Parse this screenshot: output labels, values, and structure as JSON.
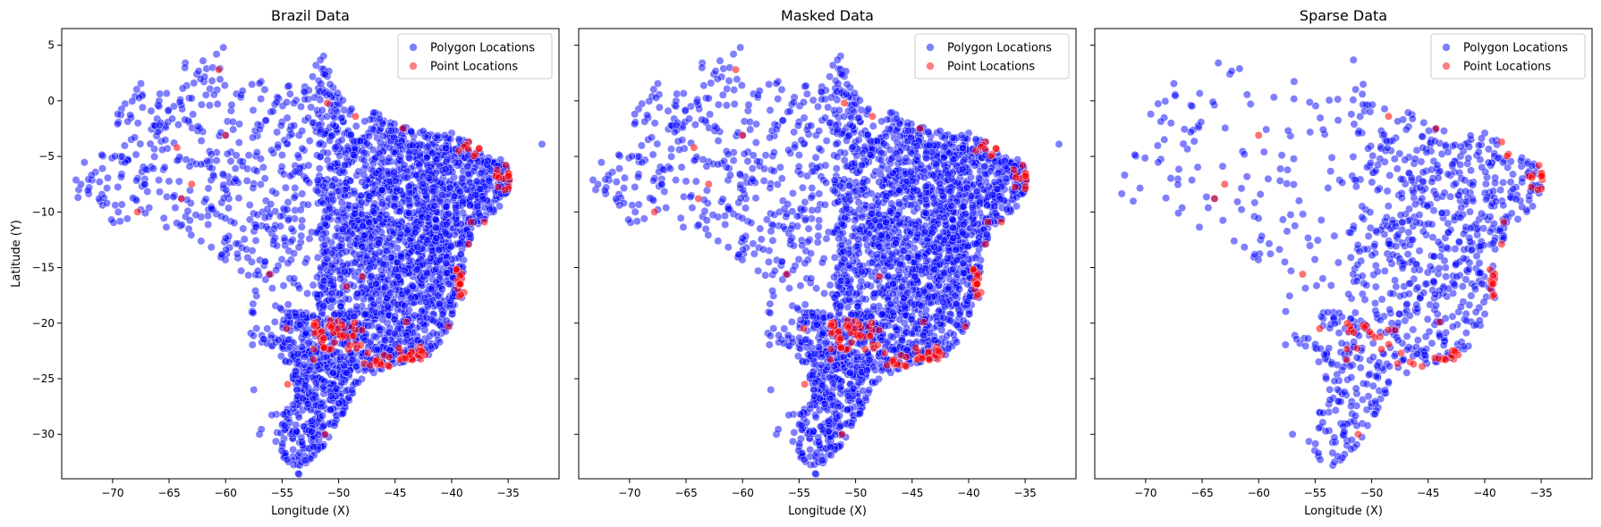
{
  "chart_data": [
    {
      "type": "scatter",
      "title": "Brazil Data",
      "xlabel": "Longitude (X)",
      "ylabel": "Latitude (Y)",
      "xlim": [
        -74.5,
        -30.5
      ],
      "ylim": [
        -34,
        6.5
      ],
      "xticks": [
        -70,
        -65,
        -60,
        -55,
        -50,
        -45,
        -40,
        -35
      ],
      "yticks": [
        5,
        0,
        -5,
        -10,
        -15,
        -20,
        -25,
        -30
      ],
      "legend": "top-right",
      "grid": false,
      "series": [
        {
          "name": "Polygon Locations",
          "color": "#0000ff",
          "density": 1.0
        },
        {
          "name": "Point Locations",
          "color": "#ff0000",
          "density": 1.0
        }
      ],
      "reference_points": {
        "polygon": [
          [
            -73,
            -8
          ],
          [
            -69.5,
            -10
          ],
          [
            -67.5,
            -9.8
          ],
          [
            -68,
            0.4
          ],
          [
            -62,
            3.6
          ],
          [
            -60.8,
            4.2
          ],
          [
            -60.2,
            4.8
          ],
          [
            -60.5,
            2.9
          ],
          [
            -64,
            0.1
          ],
          [
            -66,
            -0.4
          ],
          [
            -56,
            -1
          ],
          [
            -55,
            -1.9
          ],
          [
            -52,
            3.2
          ],
          [
            -51,
            2.2
          ],
          [
            -50.5,
            0.5
          ],
          [
            -49,
            -1.2
          ],
          [
            -46,
            -1.8
          ],
          [
            -44,
            -2.4
          ],
          [
            -40,
            -2.9
          ],
          [
            -38.5,
            -3.7
          ],
          [
            -35.2,
            -5.8
          ],
          [
            -34.9,
            -7.1
          ],
          [
            -35.1,
            -8.1
          ],
          [
            -32,
            -3.9
          ],
          [
            -36.5,
            -10
          ],
          [
            -38.5,
            -12.9
          ],
          [
            -39.1,
            -17.7
          ],
          [
            -40.2,
            -20.3
          ],
          [
            -43.2,
            -22.9
          ],
          [
            -46.6,
            -23.5
          ],
          [
            -48.5,
            -25.4
          ],
          [
            -49.2,
            -26.8
          ],
          [
            -51.2,
            -30
          ],
          [
            -52.4,
            -31.8
          ],
          [
            -53.5,
            -33.6
          ],
          [
            -57,
            -30
          ],
          [
            -55.5,
            -28.2
          ],
          [
            -57.5,
            -26
          ],
          [
            -55,
            -22.2
          ],
          [
            -57.7,
            -19
          ],
          [
            -56,
            -15.6
          ],
          [
            -60.1,
            -12.7
          ],
          [
            -63.9,
            -8.8
          ],
          [
            -60,
            -3.1
          ],
          [
            -47.9,
            -15.8
          ],
          [
            -49.3,
            -16.7
          ],
          [
            -44,
            -19.9
          ],
          [
            -47,
            -10.2
          ],
          [
            -42.8,
            -5.1
          ],
          [
            -48.3,
            -10.2
          ],
          [
            -54.6,
            -20.5
          ],
          [
            -51.4,
            -22.1
          ]
        ],
        "point": [
          [
            -60,
            -3.1
          ],
          [
            -51,
            -0.2
          ],
          [
            -48.5,
            -1.4
          ],
          [
            -44.3,
            -2.5
          ],
          [
            -38.5,
            -3.7
          ],
          [
            -35.2,
            -5.8
          ],
          [
            -34.9,
            -7.1
          ],
          [
            -38.3,
            -10.9
          ],
          [
            -38.5,
            -12.9
          ],
          [
            -39.1,
            -16
          ],
          [
            -39.3,
            -17.6
          ],
          [
            -40.3,
            -20.3
          ],
          [
            -43.2,
            -22.9
          ],
          [
            -44.5,
            -22.6
          ],
          [
            -46.6,
            -23.5
          ],
          [
            -47.4,
            -22.7
          ],
          [
            -50,
            -21
          ],
          [
            -51.4,
            -22.1
          ],
          [
            -52.2,
            -23.3
          ],
          [
            -54.6,
            -20.5
          ],
          [
            -54.5,
            -25.5
          ],
          [
            -51.2,
            -30
          ],
          [
            -56.1,
            -15.6
          ],
          [
            -63.9,
            -8.8
          ],
          [
            -67.8,
            -10
          ],
          [
            -63,
            -7.5
          ],
          [
            -64.3,
            -4.2
          ],
          [
            -60.6,
            2.8
          ],
          [
            -47.9,
            -15.8
          ],
          [
            -49.3,
            -16.7
          ],
          [
            -44,
            -19.9
          ],
          [
            -37.1,
            -10.9
          ]
        ]
      }
    },
    {
      "type": "scatter",
      "title": "Masked Data",
      "xlabel": "Longitude (X)",
      "ylabel": "",
      "xlim": [
        -74.5,
        -30.5
      ],
      "ylim": [
        -34,
        6.5
      ],
      "xticks": [
        -70,
        -65,
        -60,
        -55,
        -50,
        -45,
        -40,
        -35
      ],
      "yticks": [],
      "legend": "top-right",
      "grid": false,
      "series": [
        {
          "name": "Polygon Locations",
          "color": "#0000ff",
          "density": 0.92
        },
        {
          "name": "Point Locations",
          "color": "#ff0000",
          "density": 0.95
        }
      ]
    },
    {
      "type": "scatter",
      "title": "Sparse Data",
      "xlabel": "Longitude (X)",
      "ylabel": "",
      "xlim": [
        -74.5,
        -30.5
      ],
      "ylim": [
        -34,
        6.5
      ],
      "xticks": [
        -70,
        -65,
        -60,
        -55,
        -50,
        -45,
        -40,
        -35
      ],
      "yticks": [],
      "legend": "top-right",
      "grid": false,
      "series": [
        {
          "name": "Polygon Locations",
          "color": "#0000ff",
          "density": 0.3
        },
        {
          "name": "Point Locations",
          "color": "#ff0000",
          "density": 0.55
        }
      ]
    }
  ]
}
